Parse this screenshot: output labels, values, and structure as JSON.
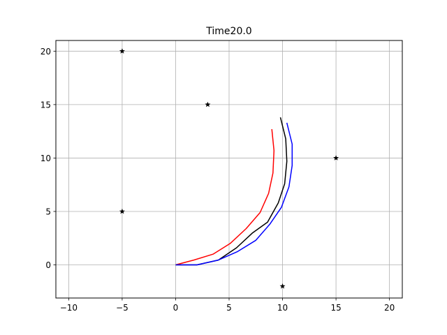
{
  "chart_data": {
    "type": "line",
    "title": "Time20.0",
    "xlabel": "",
    "ylabel": "",
    "xlim": [
      -11.2,
      21.2
    ],
    "ylim": [
      -3.1,
      21.0
    ],
    "grid": true,
    "xticks": [
      "−10",
      "−5",
      "0",
      "5",
      "10",
      "15",
      "20"
    ],
    "xtick_values": [
      -10,
      -5,
      0,
      5,
      10,
      15,
      20
    ],
    "yticks": [
      "0",
      "5",
      "10",
      "15",
      "20"
    ],
    "ytick_values": [
      0,
      5,
      10,
      15,
      20
    ],
    "series": [
      {
        "name": "red-trajectory",
        "color": "#ff0000",
        "x": [
          0,
          1.7,
          3.5,
          5.1,
          6.6,
          7.9,
          8.7,
          9.1,
          9.2,
          9.0
        ],
        "y": [
          0,
          0.45,
          1.0,
          2.0,
          3.4,
          4.9,
          6.7,
          8.6,
          10.7,
          12.7
        ]
      },
      {
        "name": "black-trajectory",
        "color": "#000000",
        "x": [
          0,
          2.0,
          4.0,
          5.7,
          7.2,
          8.6,
          9.6,
          10.2,
          10.4,
          10.3,
          9.8
        ],
        "y": [
          0,
          0,
          0.45,
          1.6,
          3.0,
          4.0,
          5.8,
          7.6,
          9.7,
          11.8,
          13.8
        ]
      },
      {
        "name": "blue-trajectory",
        "color": "#0000ff",
        "x": [
          0,
          2.0,
          4.0,
          5.8,
          7.5,
          8.8,
          9.9,
          10.6,
          10.9,
          10.9,
          10.4
        ],
        "y": [
          0,
          0,
          0.45,
          1.25,
          2.3,
          3.8,
          5.4,
          7.3,
          9.3,
          11.3,
          13.3
        ]
      }
    ],
    "markers": {
      "name": "landmarks",
      "symbol": "star",
      "color": "#000000",
      "points": [
        [
          -5,
          20
        ],
        [
          3,
          15
        ],
        [
          15,
          10
        ],
        [
          -5,
          5
        ],
        [
          10,
          -2
        ]
      ]
    }
  }
}
